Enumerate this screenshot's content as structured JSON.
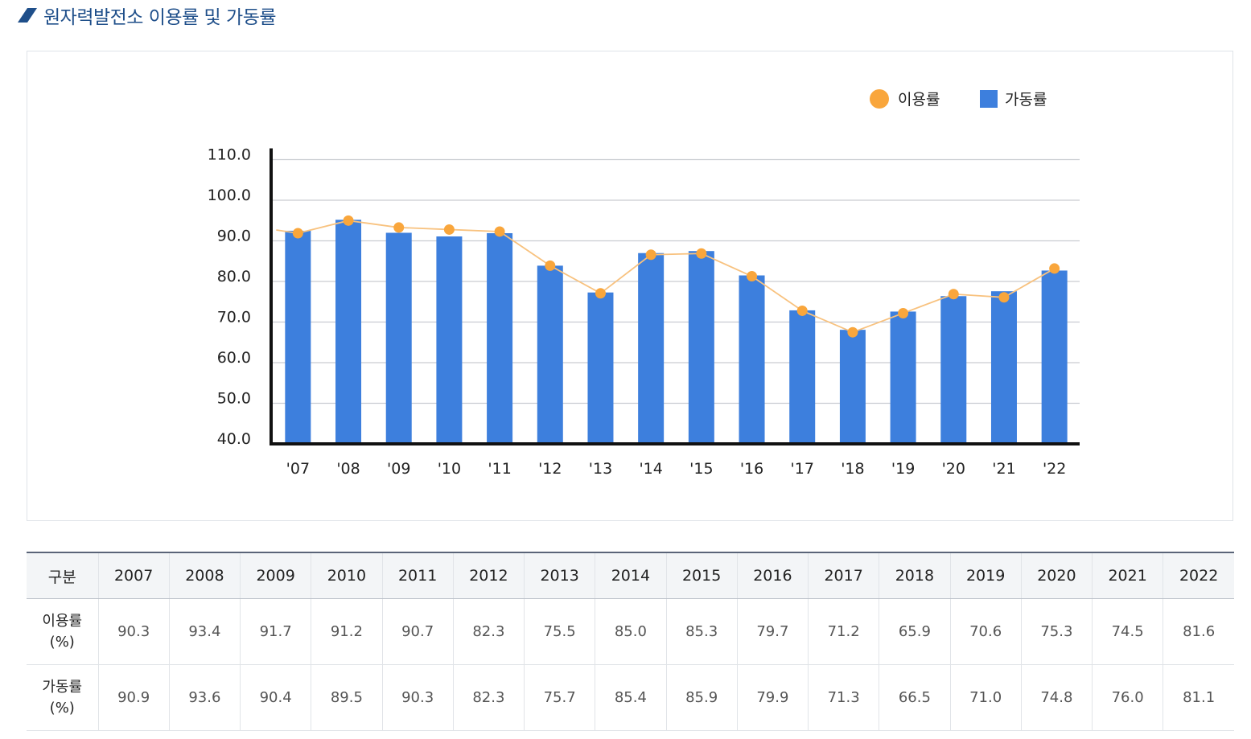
{
  "title": "원자력발전소 이용률 및 가동률",
  "colors": {
    "bar": "#3d7fdd",
    "line": "#f9a63c",
    "line_stroke": "#f8c27f",
    "title": "#1f4f8a"
  },
  "chart_data": {
    "type": "bar",
    "categories": [
      "'07",
      "'08",
      "'09",
      "'10",
      "'11",
      "'12",
      "'13",
      "'14",
      "'15",
      "'16",
      "'17",
      "'18",
      "'19",
      "'20",
      "'21",
      "'22"
    ],
    "ylim": [
      40,
      110
    ],
    "yticks": [
      "40.0",
      "50.0",
      "60.0",
      "70.0",
      "80.0",
      "90.0",
      "100.0",
      "110.0"
    ],
    "grid": true,
    "legend_position": "top-right",
    "series": [
      {
        "name": "이용률",
        "type": "line",
        "values": [
          90.3,
          93.4,
          91.7,
          91.2,
          90.7,
          82.3,
          75.5,
          85.0,
          85.3,
          79.7,
          71.2,
          65.9,
          70.6,
          75.3,
          74.5,
          81.6
        ]
      },
      {
        "name": "가동률",
        "type": "bar",
        "values": [
          90.9,
          93.6,
          90.4,
          89.5,
          90.3,
          82.3,
          75.7,
          85.4,
          85.9,
          79.9,
          71.3,
          66.5,
          71.0,
          74.8,
          76.0,
          81.1
        ]
      }
    ]
  },
  "table": {
    "header_label": "구분",
    "years": [
      "2007",
      "2008",
      "2009",
      "2010",
      "2011",
      "2012",
      "2013",
      "2014",
      "2015",
      "2016",
      "2017",
      "2018",
      "2019",
      "2020",
      "2021",
      "2022"
    ],
    "rows": [
      {
        "label": "이용률",
        "unit": "(%)",
        "values": [
          "90.3",
          "93.4",
          "91.7",
          "91.2",
          "90.7",
          "82.3",
          "75.5",
          "85.0",
          "85.3",
          "79.7",
          "71.2",
          "65.9",
          "70.6",
          "75.3",
          "74.5",
          "81.6"
        ]
      },
      {
        "label": "가동률",
        "unit": "(%)",
        "values": [
          "90.9",
          "93.6",
          "90.4",
          "89.5",
          "90.3",
          "82.3",
          "75.7",
          "85.4",
          "85.9",
          "79.9",
          "71.3",
          "66.5",
          "71.0",
          "74.8",
          "76.0",
          "81.1"
        ]
      }
    ]
  }
}
